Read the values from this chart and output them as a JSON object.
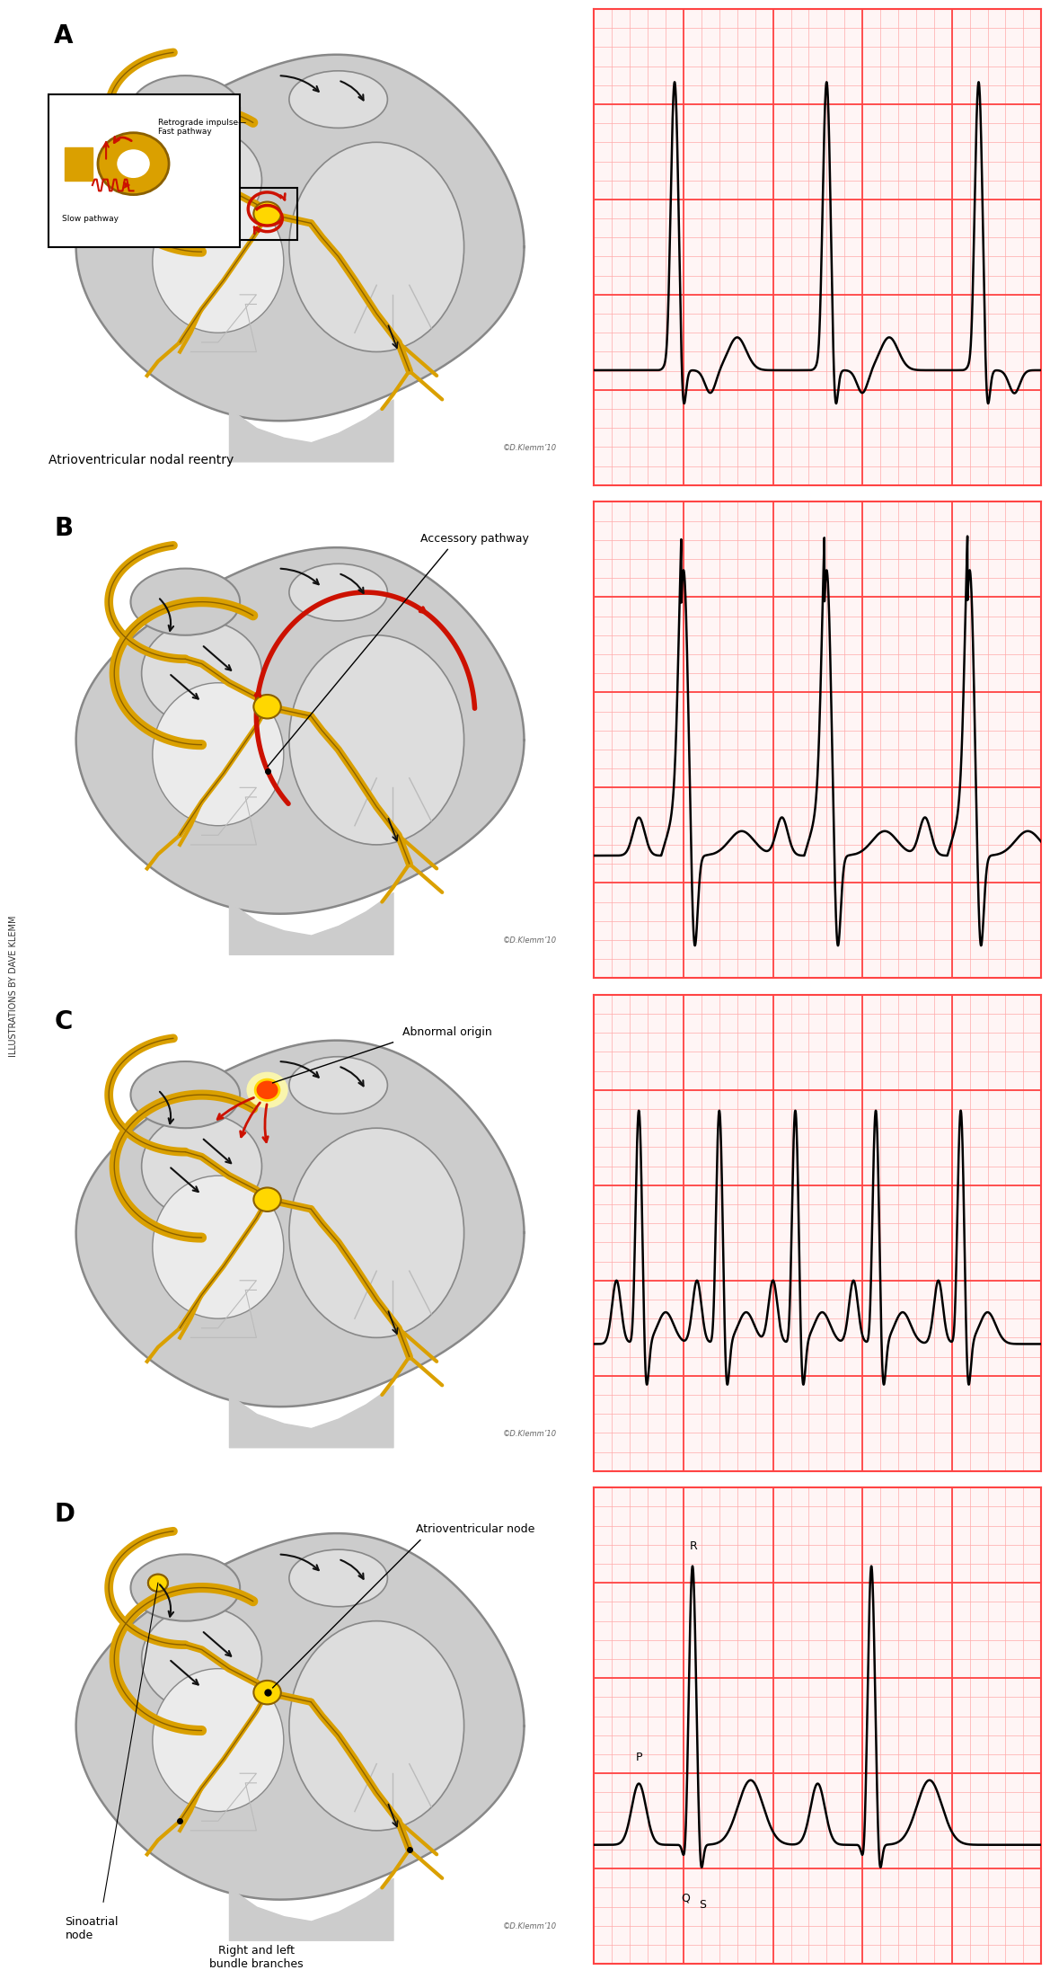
{
  "bg_color": "#ffffff",
  "gold": "#DAA000",
  "gold_edge": "#8B6000",
  "gold_light": "#FFD700",
  "gray_outer": "#BBBBBB",
  "gray_mid": "#CCCCCC",
  "gray_light": "#DDDDDD",
  "gray_very_light": "#EBEBEB",
  "gray_edge": "#888888",
  "red_accent": "#CC1100",
  "black": "#111111",
  "ecg_bg": "#FFF5F5",
  "grid_minor": "#FFAAAA",
  "grid_major": "#FF4444",
  "copyright": "©D.Klemm’10",
  "sidebar": "ILLUSTRATIONS BY DAVE KLEMM",
  "caption_A": "Atrioventricular nodal reentry",
  "label_B": "Accessory pathway",
  "label_C": "Abnormal origin",
  "label_D_av": "Atrioventricular node",
  "label_D_sa": "Sinoatrial\nnode",
  "label_D_bb": "Right and left\nbundle branches"
}
